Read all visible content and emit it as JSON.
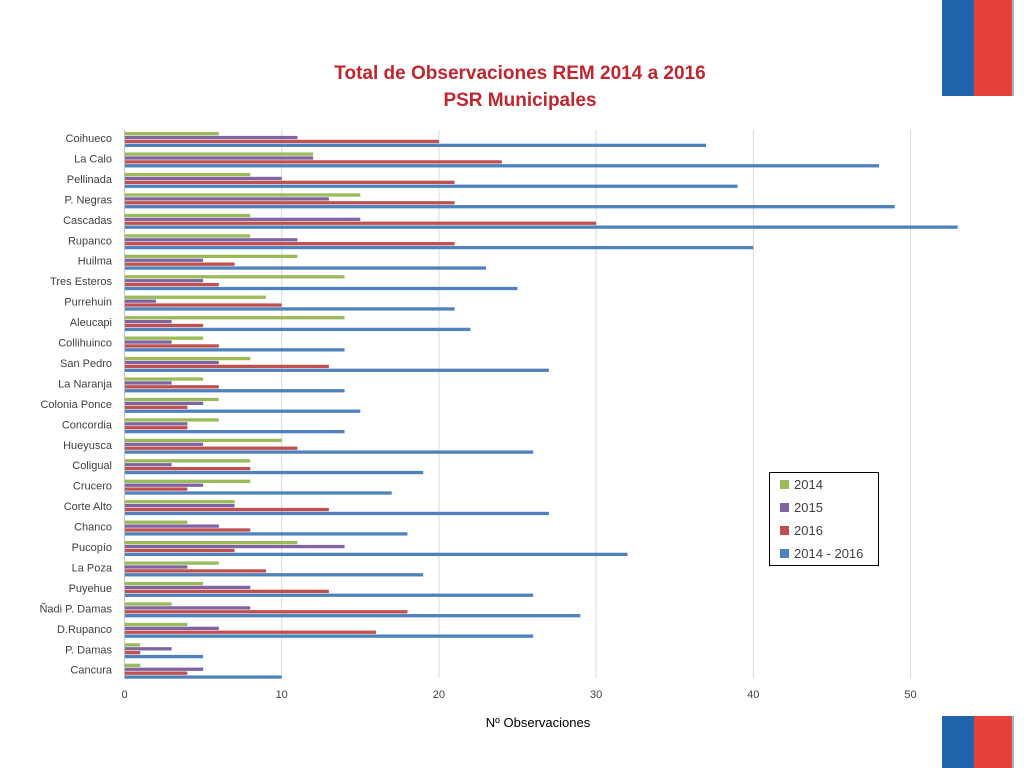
{
  "chart_data": {
    "type": "bar",
    "orientation": "horizontal",
    "title": [
      "Total de Observaciones REM 2014 a 2016",
      "PSR Municipales"
    ],
    "xlabel": "Nº Observaciones",
    "xlim": [
      0,
      55
    ],
    "xticks": [
      0,
      10,
      20,
      30,
      40,
      50
    ],
    "grid": true,
    "legend_position": "right",
    "categories": [
      "Coihueco",
      "La Calo",
      "Pellinada",
      "P. Negras",
      "Cascadas",
      "Rupanco",
      "Huilma",
      "Tres Esteros",
      "Purrehuin",
      "Aleucapi",
      "Collihuinco",
      "San Pedro",
      "La Naranja",
      "Colonia Ponce",
      "Concordia",
      "Hueyusca",
      "Coligual",
      "Crucero",
      "Corte Alto",
      "Chanco",
      "Pucopío",
      "La Poza",
      "Puyehue",
      "Ñadi P. Damas",
      "D.Rupanco",
      "P. Damas",
      "Cancura"
    ],
    "series": [
      {
        "name": "2014",
        "color": "#9bbb59",
        "values": [
          6,
          12,
          8,
          15,
          8,
          8,
          11,
          14,
          9,
          14,
          5,
          8,
          5,
          6,
          6,
          10,
          8,
          8,
          7,
          4,
          11,
          6,
          5,
          3,
          4,
          1,
          1
        ]
      },
      {
        "name": "2015",
        "color": "#8064a2",
        "values": [
          11,
          12,
          10,
          13,
          15,
          11,
          5,
          5,
          2,
          3,
          3,
          6,
          3,
          5,
          4,
          5,
          3,
          5,
          7,
          6,
          14,
          4,
          8,
          8,
          6,
          3,
          5
        ]
      },
      {
        "name": "2016",
        "color": "#c0504d",
        "values": [
          20,
          24,
          21,
          21,
          30,
          21,
          7,
          6,
          10,
          5,
          6,
          13,
          6,
          4,
          4,
          11,
          8,
          4,
          13,
          8,
          7,
          9,
          13,
          18,
          16,
          1,
          4
        ]
      },
      {
        "name": "2014 - 2016",
        "color": "#4f81bd",
        "values": [
          37,
          48,
          39,
          49,
          53,
          40,
          23,
          25,
          21,
          22,
          14,
          27,
          14,
          15,
          14,
          26,
          19,
          17,
          27,
          18,
          32,
          19,
          26,
          29,
          26,
          5,
          10
        ]
      }
    ]
  }
}
